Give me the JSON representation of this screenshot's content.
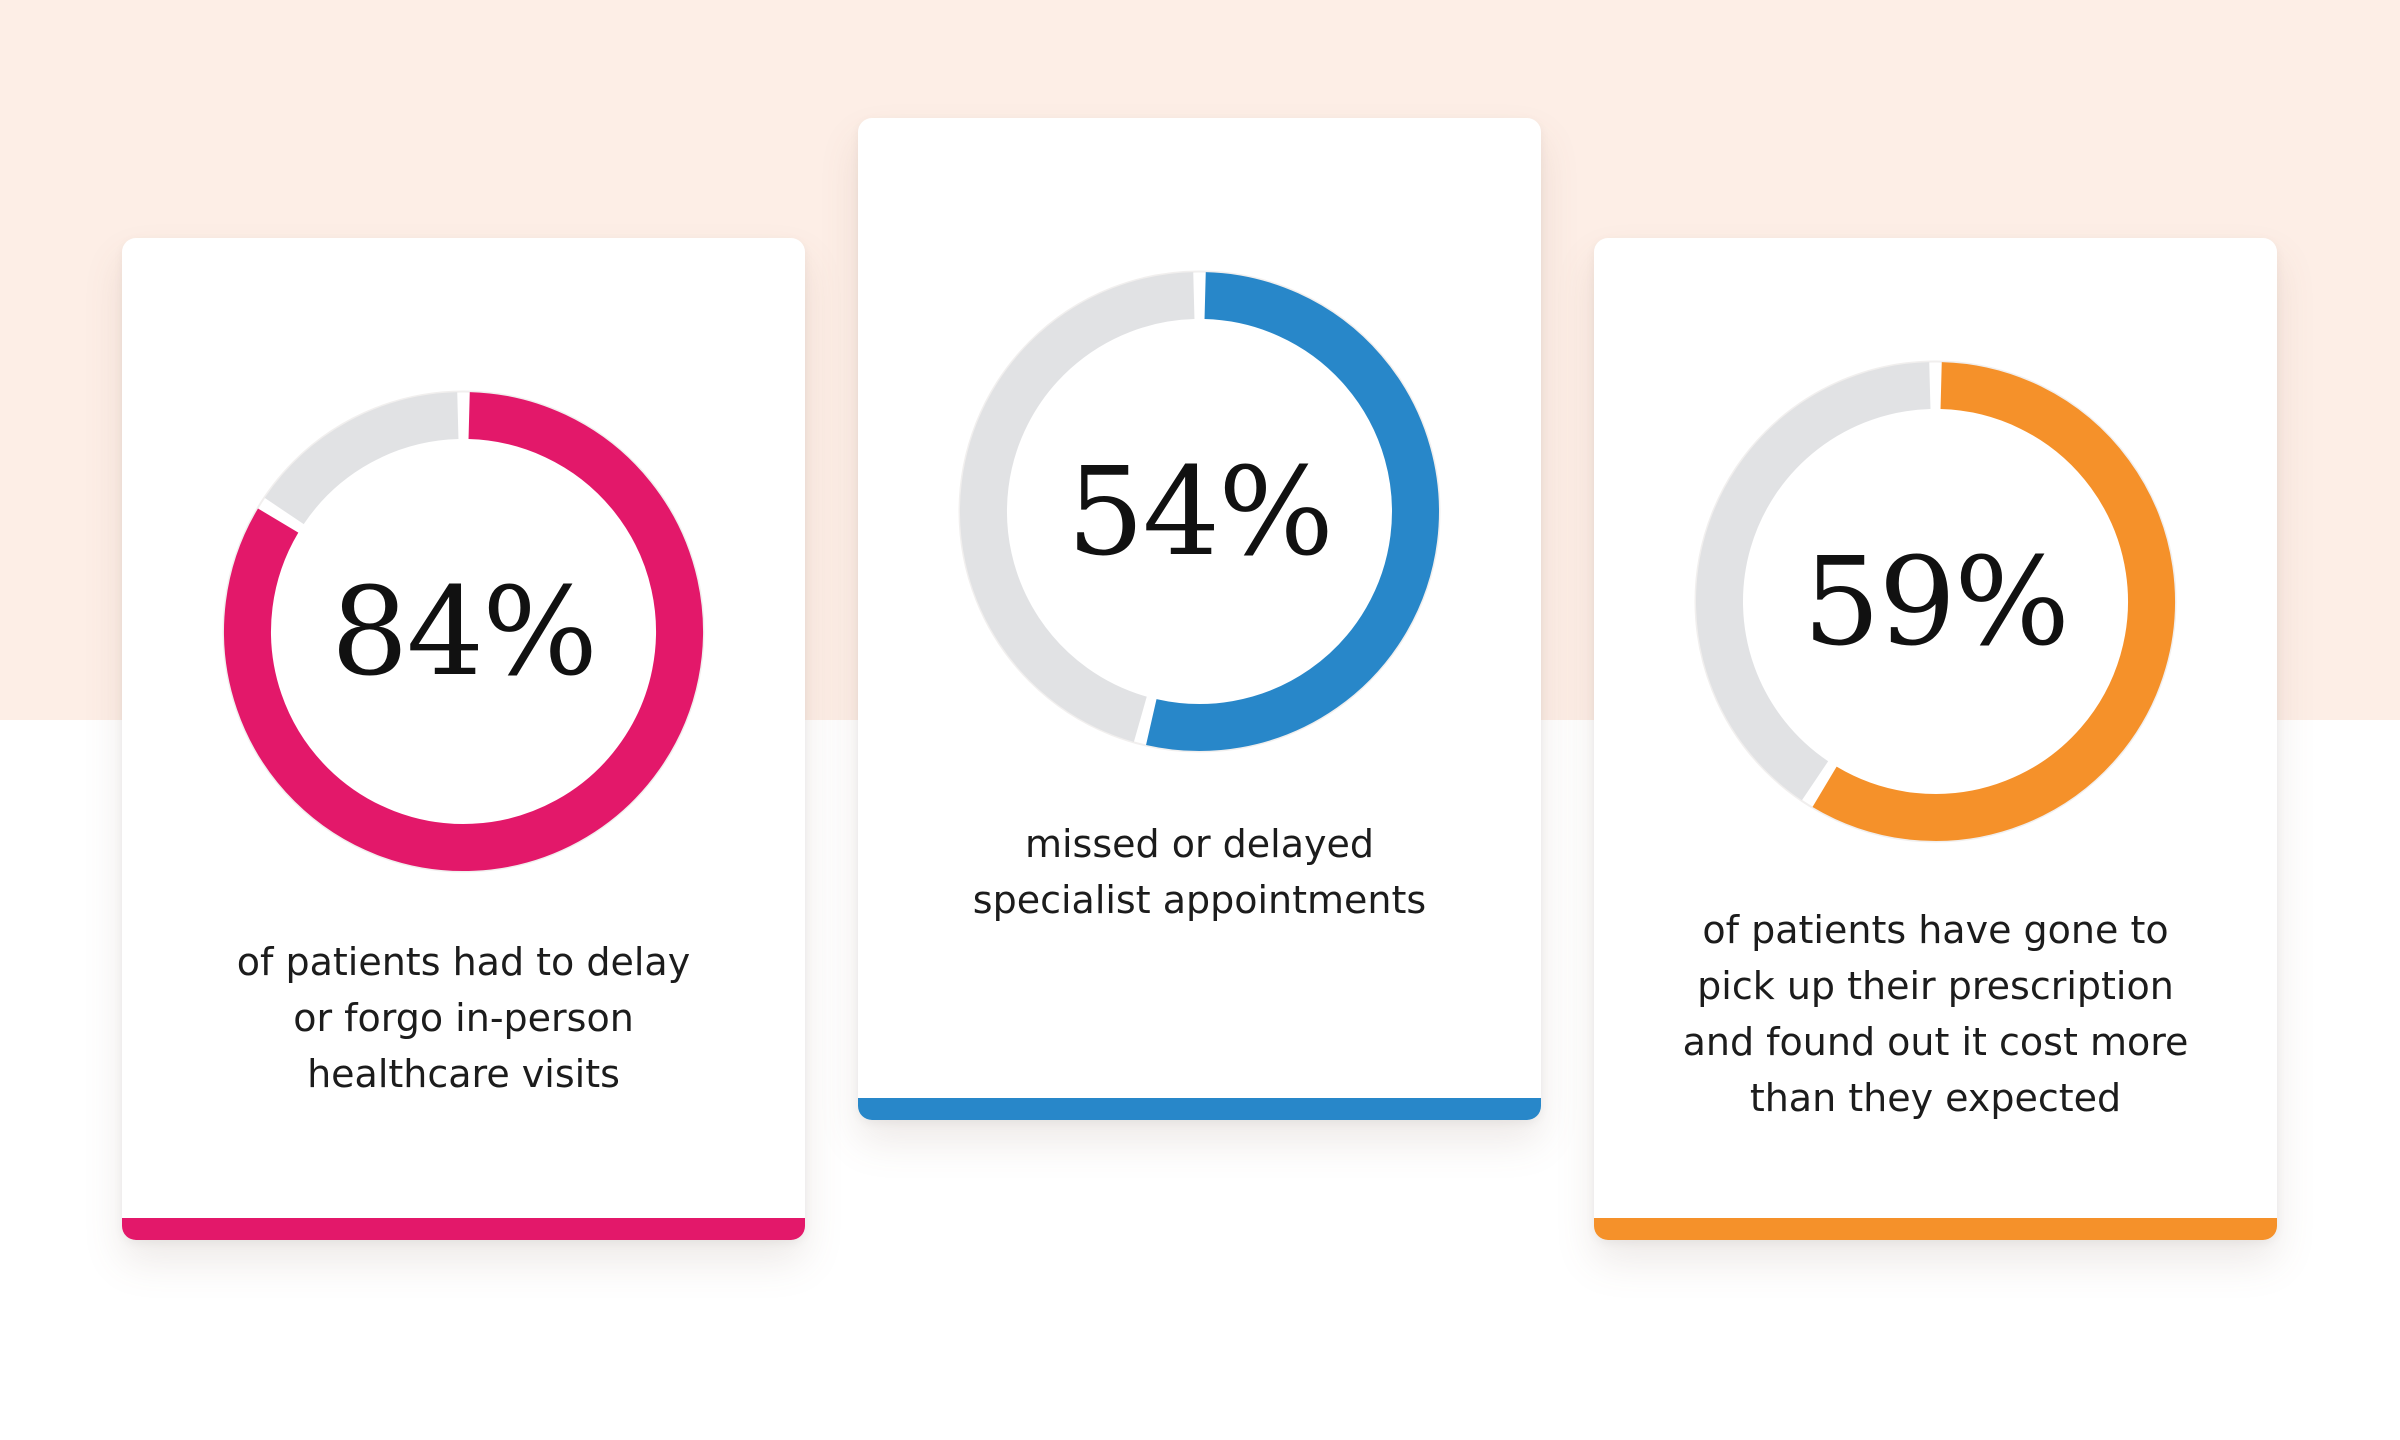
{
  "chart_data": [
    {
      "type": "pie",
      "value": 84,
      "label": "84%",
      "caption": [
        "of patients had to delay",
        "or forgo in-person",
        "healthcare visits"
      ],
      "color": "#e3186a",
      "track_color": "#e1e2e4"
    },
    {
      "type": "pie",
      "value": 54,
      "label": "54%",
      "caption": [
        "missed or delayed",
        "specialist appointments"
      ],
      "color": "#2887c9",
      "track_color": "#e1e2e4"
    },
    {
      "type": "pie",
      "value": 59,
      "label": "59%",
      "caption": [
        "of patients have gone to",
        "pick up their prescription",
        "and found out it cost more",
        "than they expected"
      ],
      "color": "#f5912a",
      "track_color": "#e1e2e4"
    }
  ],
  "colors": {
    "top_band": "#fdeee6",
    "card_background": "#ffffff",
    "text": "#1c1c1c"
  }
}
